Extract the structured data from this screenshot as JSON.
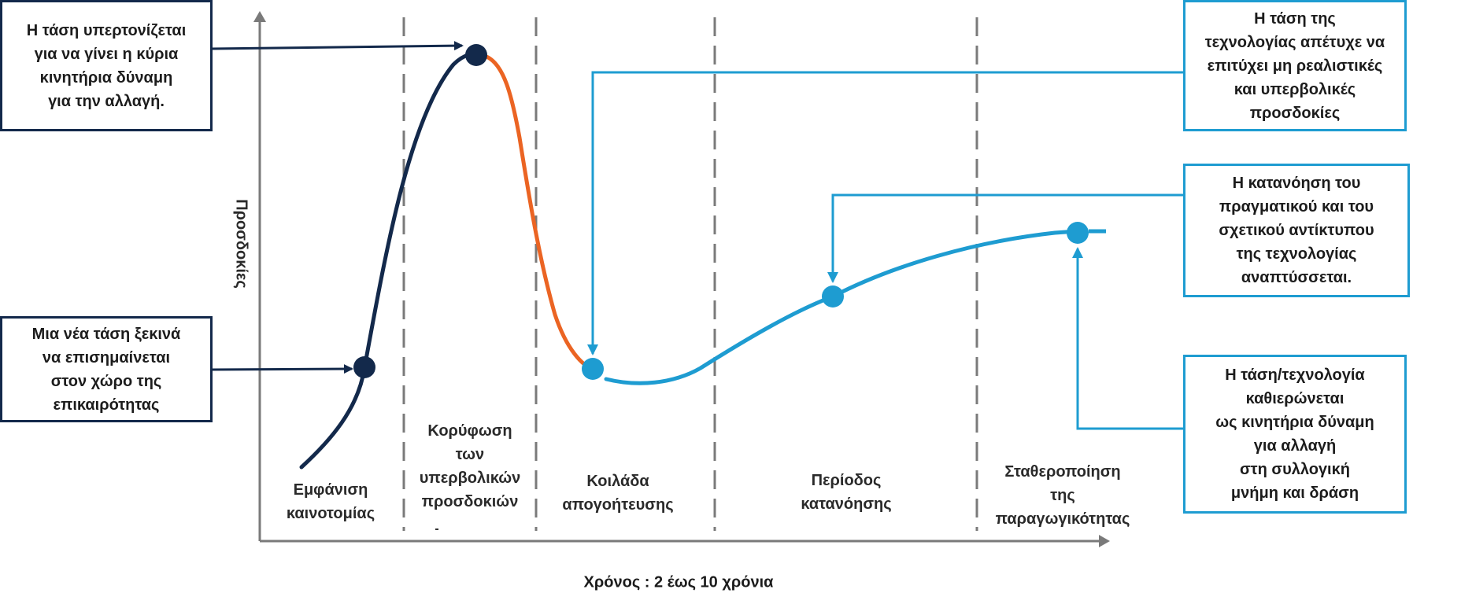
{
  "axes": {
    "y_label": "Προσδοκίες",
    "x_label": "Χρόνος : 2 έως 10 χρόνια"
  },
  "phases": [
    {
      "id": "innovation",
      "label": "Εμφάνιση\nκαινοτομίας"
    },
    {
      "id": "peak",
      "label": "Κορύφωση\nτων\nυπερβολικών\nπροσδοκιών"
    },
    {
      "id": "trough",
      "label": "Κοιλάδα\nαπογοήτευσης"
    },
    {
      "id": "slope",
      "label": "Περίοδος\nκατανόησης"
    },
    {
      "id": "plateau",
      "label": "Σταθεροποίηση\nτης\nπαραγωγικότητας"
    }
  ],
  "callouts": {
    "peak_text": "Η τάση υπερτονίζεται\nγια να γίνει η κύρια\nκινητήρια δύναμη\nγια την αλλαγή.",
    "trigger_text": "Μια νέα τάση ξεκινά\nνα επισημαίνεται\nστον χώρο της\nεπικαιρότητας",
    "trough_text": "Η τάση της\nτεχνολογίας απέτυχε να\nεπιτύχει μη ρεαλιστικές\nκαι υπερβολικές\nπροσδοκίες",
    "slope_text": "Η κατανόηση του\nπραγματικού και του\nσχετικού αντίκτυπου\nτης τεχνολογίας\nαναπτύσσεται.",
    "plateau_text": "Η τάση/τεχνολογία\nκαθιερώνεται\nως κινητήρια δύναμη\nγια αλλαγή\nστη συλλογική\nμνήμη και δράση"
  },
  "colors": {
    "dark_navy": "#13294b",
    "orange": "#eb6423",
    "blue": "#1e9cd1",
    "gray": "#7a7a7a"
  }
}
